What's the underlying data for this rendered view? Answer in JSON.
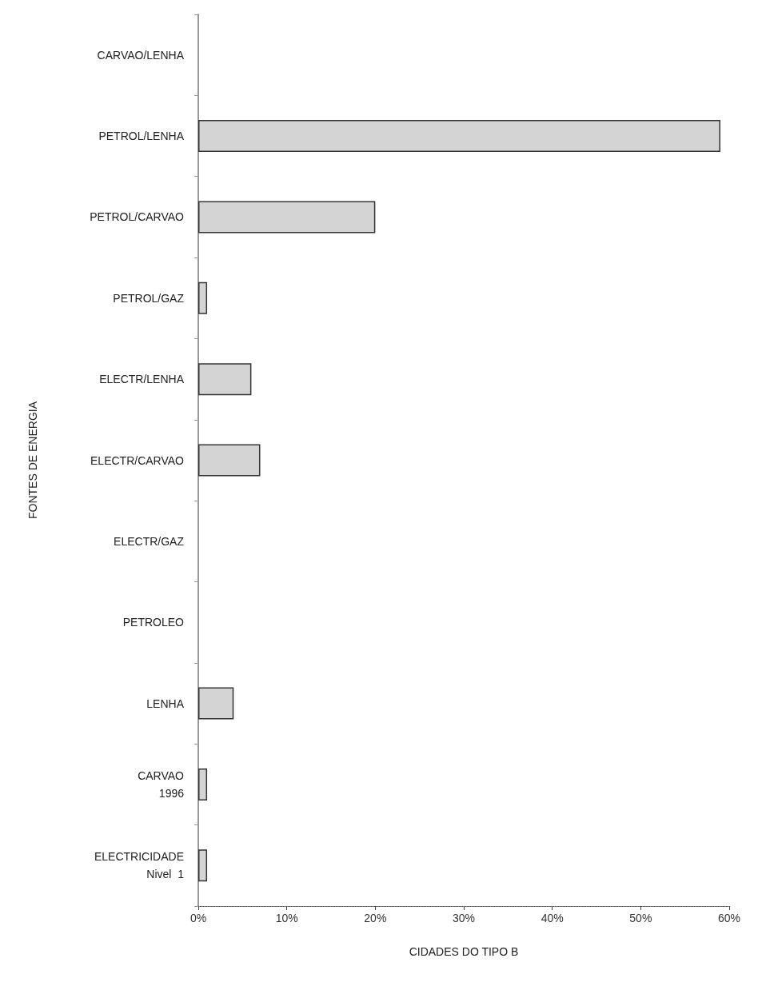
{
  "chart_data": {
    "type": "bar",
    "orientation": "horizontal",
    "xlabel": "CIDADES DO TIPO B",
    "ylabel": "FONTES DE ENERGIA",
    "categories": [
      "CARVAO/LENHA",
      "PETROL/LENHA",
      "PETROL/CARVAO",
      "PETROL/GAZ",
      "ELECTR/LENHA",
      "ELECTR/CARVAO",
      "ELECTR/GAZ",
      "PETROLEO",
      "LENHA",
      "CARVAO\n1996",
      "ELECTRICIDADE\nNivel  1"
    ],
    "values": [
      0,
      59,
      20,
      1,
      6,
      7,
      0,
      0,
      4,
      1,
      1
    ],
    "color": "#d4d4d4",
    "xlim": [
      0,
      60
    ],
    "xticks": [
      {
        "value": 0,
        "label": "0%"
      },
      {
        "value": 10,
        "label": "10%"
      },
      {
        "value": 20,
        "label": "20%"
      },
      {
        "value": 30,
        "label": "30%"
      },
      {
        "value": 40,
        "label": "40%"
      },
      {
        "value": 50,
        "label": "50%"
      },
      {
        "value": 60,
        "label": "60%"
      }
    ],
    "grid": false
  }
}
